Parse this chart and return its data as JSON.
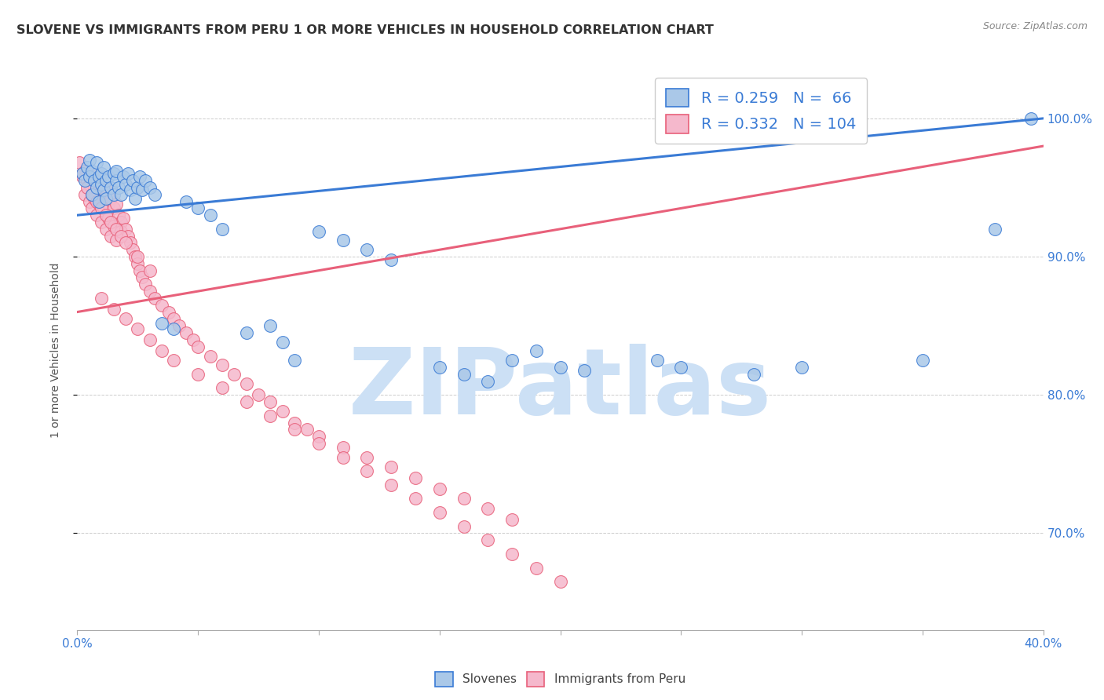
{
  "title": "SLOVENE VS IMMIGRANTS FROM PERU 1 OR MORE VEHICLES IN HOUSEHOLD CORRELATION CHART",
  "source": "Source: ZipAtlas.com",
  "ylabel": "1 or more Vehicles in Household",
  "xlim": [
    0.0,
    0.4
  ],
  "ylim": [
    0.63,
    1.035
  ],
  "ytick_positions": [
    0.7,
    0.8,
    0.9,
    1.0
  ],
  "yticklabels": [
    "70.0%",
    "80.0%",
    "90.0%",
    "100.0%"
  ],
  "xtick_positions": [
    0.0,
    0.05,
    0.1,
    0.15,
    0.2,
    0.25,
    0.3,
    0.35,
    0.4
  ],
  "xticklabels": [
    "0.0%",
    "",
    "",
    "",
    "",
    "",
    "",
    "",
    "40.0%"
  ],
  "slovene_color": "#aac8e8",
  "peru_color": "#f5b8cc",
  "line_blue": "#3a7bd5",
  "line_pink": "#e8607a",
  "R_blue": "0.259",
  "N_blue": "66",
  "R_pink": "0.332",
  "N_pink": "104",
  "watermark": "ZIPatlas",
  "watermark_color": "#cce0f5",
  "title_fontsize": 11.5,
  "tick_color": "#3a7bd5",
  "grid_color": "#cccccc",
  "slovenes_x": [
    0.002,
    0.003,
    0.004,
    0.005,
    0.005,
    0.006,
    0.006,
    0.007,
    0.008,
    0.008,
    0.009,
    0.009,
    0.01,
    0.01,
    0.011,
    0.011,
    0.012,
    0.012,
    0.013,
    0.014,
    0.015,
    0.015,
    0.016,
    0.016,
    0.017,
    0.018,
    0.019,
    0.02,
    0.021,
    0.022,
    0.023,
    0.024,
    0.025,
    0.026,
    0.027,
    0.028,
    0.03,
    0.032,
    0.035,
    0.04,
    0.045,
    0.05,
    0.055,
    0.06,
    0.07,
    0.08,
    0.085,
    0.09,
    0.1,
    0.11,
    0.12,
    0.13,
    0.15,
    0.16,
    0.17,
    0.18,
    0.19,
    0.2,
    0.21,
    0.24,
    0.25,
    0.28,
    0.3,
    0.35,
    0.38,
    0.395
  ],
  "slovenes_y": [
    0.96,
    0.955,
    0.965,
    0.958,
    0.97,
    0.962,
    0.945,
    0.955,
    0.95,
    0.968,
    0.958,
    0.94,
    0.96,
    0.952,
    0.948,
    0.965,
    0.955,
    0.942,
    0.958,
    0.95,
    0.96,
    0.945,
    0.955,
    0.962,
    0.95,
    0.945,
    0.958,
    0.952,
    0.96,
    0.948,
    0.955,
    0.942,
    0.95,
    0.958,
    0.948,
    0.955,
    0.95,
    0.945,
    0.852,
    0.848,
    0.94,
    0.935,
    0.93,
    0.92,
    0.845,
    0.85,
    0.838,
    0.825,
    0.918,
    0.912,
    0.905,
    0.898,
    0.82,
    0.815,
    0.81,
    0.825,
    0.832,
    0.82,
    0.818,
    0.825,
    0.82,
    0.815,
    0.82,
    0.825,
    0.92,
    1.0
  ],
  "peru_x": [
    0.001,
    0.002,
    0.003,
    0.003,
    0.004,
    0.005,
    0.005,
    0.006,
    0.006,
    0.007,
    0.007,
    0.008,
    0.008,
    0.009,
    0.009,
    0.01,
    0.01,
    0.011,
    0.011,
    0.012,
    0.012,
    0.013,
    0.013,
    0.014,
    0.014,
    0.015,
    0.015,
    0.016,
    0.016,
    0.017,
    0.018,
    0.018,
    0.019,
    0.02,
    0.021,
    0.022,
    0.023,
    0.024,
    0.025,
    0.026,
    0.027,
    0.028,
    0.03,
    0.032,
    0.035,
    0.038,
    0.04,
    0.042,
    0.045,
    0.048,
    0.05,
    0.055,
    0.06,
    0.065,
    0.07,
    0.075,
    0.08,
    0.085,
    0.09,
    0.095,
    0.1,
    0.11,
    0.12,
    0.13,
    0.14,
    0.15,
    0.16,
    0.17,
    0.18,
    0.002,
    0.004,
    0.006,
    0.008,
    0.01,
    0.012,
    0.014,
    0.016,
    0.018,
    0.02,
    0.025,
    0.03,
    0.01,
    0.015,
    0.02,
    0.025,
    0.03,
    0.035,
    0.04,
    0.05,
    0.06,
    0.07,
    0.08,
    0.09,
    0.1,
    0.11,
    0.12,
    0.13,
    0.14,
    0.15,
    0.16,
    0.17,
    0.18,
    0.19,
    0.2
  ],
  "peru_y": [
    0.968,
    0.958,
    0.962,
    0.945,
    0.955,
    0.952,
    0.94,
    0.96,
    0.935,
    0.95,
    0.942,
    0.955,
    0.93,
    0.945,
    0.938,
    0.952,
    0.925,
    0.942,
    0.935,
    0.948,
    0.92,
    0.938,
    0.928,
    0.942,
    0.915,
    0.935,
    0.922,
    0.938,
    0.912,
    0.93,
    0.925,
    0.918,
    0.928,
    0.92,
    0.915,
    0.91,
    0.905,
    0.9,
    0.895,
    0.89,
    0.885,
    0.88,
    0.875,
    0.87,
    0.865,
    0.86,
    0.855,
    0.85,
    0.845,
    0.84,
    0.835,
    0.828,
    0.822,
    0.815,
    0.808,
    0.8,
    0.795,
    0.788,
    0.78,
    0.775,
    0.77,
    0.762,
    0.755,
    0.748,
    0.74,
    0.732,
    0.725,
    0.718,
    0.71,
    0.96,
    0.95,
    0.945,
    0.94,
    0.935,
    0.93,
    0.925,
    0.92,
    0.915,
    0.91,
    0.9,
    0.89,
    0.87,
    0.862,
    0.855,
    0.848,
    0.84,
    0.832,
    0.825,
    0.815,
    0.805,
    0.795,
    0.785,
    0.775,
    0.765,
    0.755,
    0.745,
    0.735,
    0.725,
    0.715,
    0.705,
    0.695,
    0.685,
    0.675,
    0.665
  ]
}
